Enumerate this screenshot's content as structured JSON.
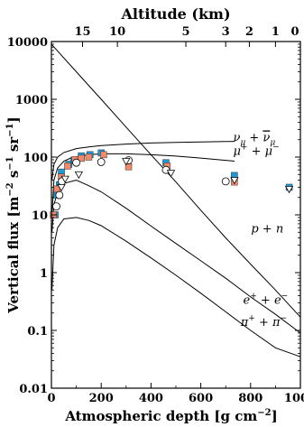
{
  "chart_data": {
    "type": "line",
    "title": "",
    "xlabel_prefix": "Atmospheric depth  [g cm",
    "xlabel_exp": "−2",
    "xlabel_suffix": "]",
    "ylabel_prefix": "Vertical flux  [m",
    "ylabel_exp1": "−2",
    "ylabel_mid1": " s",
    "ylabel_exp2": "−1",
    "ylabel_mid2": " sr",
    "ylabel_exp3": "−1",
    "ylabel_suffix": "]",
    "top_axis_label": "Altitude (km)",
    "xlim": [
      0,
      1000
    ],
    "ylim": [
      0.01,
      10000
    ],
    "y_scale": "log",
    "x_ticks": [
      "0",
      "200",
      "400",
      "600",
      "800",
      "1000"
    ],
    "x_tick_values": [
      0,
      200,
      400,
      600,
      800,
      1000
    ],
    "y_ticks": [
      "0.01",
      "0.1",
      "1",
      "10",
      "100",
      "1000",
      "10000"
    ],
    "y_tick_values": [
      0.01,
      0.1,
      1,
      10,
      100,
      1000,
      10000
    ],
    "altitude_ticks": [
      {
        "label": "15",
        "depth": 125
      },
      {
        "label": "10",
        "depth": 265
      },
      {
        "label": "5",
        "depth": 540
      },
      {
        "label": "3",
        "depth": 700
      },
      {
        "label": "2",
        "depth": 795
      },
      {
        "label": "1",
        "depth": 900
      },
      {
        "label": "0",
        "depth": 1030
      }
    ],
    "series": [
      {
        "name": "p + n",
        "x": [
          0,
          100,
          200,
          300,
          400,
          500,
          600,
          700,
          800,
          900,
          1000
        ],
        "y": [
          9000,
          3000,
          1000,
          330,
          110,
          37,
          12,
          4,
          1.4,
          0.5,
          0.17
        ]
      },
      {
        "name": "ν_μ + ν̄_μ",
        "x": [
          2,
          10,
          25,
          50,
          100,
          150,
          200,
          300,
          400,
          500,
          600,
          700,
          735
        ],
        "y": [
          40,
          75,
          100,
          120,
          140,
          150,
          158,
          168,
          175,
          180,
          183,
          186,
          187
        ]
      },
      {
        "name": "μ⁺ + μ⁻",
        "x": [
          2,
          10,
          25,
          50,
          75,
          100,
          150,
          200,
          300,
          400,
          500,
          600,
          700,
          735
        ],
        "y": [
          10,
          40,
          65,
          85,
          95,
          101,
          110,
          114,
          114,
          110,
          104,
          96,
          88,
          85
        ]
      },
      {
        "name": "e⁺ + e⁻",
        "x": [
          2,
          10,
          25,
          50,
          100,
          150,
          200,
          300,
          400,
          500,
          600,
          700,
          800,
          900,
          1000
        ],
        "y": [
          5,
          15,
          25,
          35,
          40,
          32,
          25,
          13,
          6.4,
          3.2,
          1.6,
          0.8,
          0.38,
          0.19,
          0.09
        ]
      },
      {
        "name": "π⁺ + π⁻",
        "x": [
          2,
          10,
          25,
          50,
          100,
          150,
          200,
          300,
          400,
          500,
          600,
          700,
          800,
          900,
          1000
        ],
        "y": [
          0.5,
          3,
          6,
          8.5,
          9,
          8,
          6.5,
          3.5,
          1.8,
          0.9,
          0.44,
          0.21,
          0.1,
          0.05,
          0.035
        ]
      }
    ],
    "curve_labels": [
      {
        "base": "ν",
        "sub": "μ",
        "mid": " + ",
        "base2": "ν",
        "sub2": "μ",
        "bar": true,
        "x": 730,
        "y": 188
      },
      {
        "base": "μ",
        "sup": "+",
        "mid": " + ",
        "base2": "μ",
        "sup2": "−",
        "x": 730,
        "y": 110
      },
      {
        "text": "p + n",
        "x": 802,
        "y": 5.0
      },
      {
        "base": "e",
        "sup": "+",
        "mid": " + ",
        "base2": "e",
        "sup2": "−",
        "x": 770,
        "y": 0.29
      },
      {
        "base": "π",
        "sup": "+",
        "mid": " + ",
        "base2": "π",
        "sup2": "−",
        "x": 760,
        "y": 0.12
      }
    ],
    "data_points": [
      {
        "marker": "square-blue",
        "points": [
          [
            15,
            10
          ],
          [
            22,
            22
          ],
          [
            32,
            33
          ],
          [
            40,
            55
          ],
          [
            70,
            75
          ],
          [
            90,
            88
          ],
          [
            120,
            105
          ],
          [
            155,
            110
          ],
          [
            200,
            118
          ],
          [
            460,
            80
          ],
          [
            735,
            48
          ],
          [
            955,
            30
          ]
        ]
      },
      {
        "marker": "square-salmon",
        "points": [
          [
            8,
            10
          ],
          [
            22,
            28
          ],
          [
            40,
            45
          ],
          [
            65,
            70
          ],
          [
            95,
            90
          ],
          [
            120,
            95
          ],
          [
            150,
            100
          ],
          [
            210,
            110
          ],
          [
            310,
            68
          ],
          [
            465,
            70
          ],
          [
            735,
            37
          ]
        ]
      },
      {
        "marker": "circle-open",
        "points": [
          [
            20,
            14
          ],
          [
            32,
            22
          ],
          [
            42,
            38
          ],
          [
            100,
            80
          ],
          [
            200,
            82
          ],
          [
            310,
            88
          ],
          [
            460,
            60
          ],
          [
            700,
            38
          ]
        ]
      },
      {
        "marker": "triangle-open",
        "points": [
          [
            40,
            30
          ],
          [
            55,
            42
          ],
          [
            110,
            50
          ],
          [
            300,
            85
          ],
          [
            480,
            53
          ],
          [
            735,
            40
          ],
          [
            955,
            28
          ]
        ]
      }
    ]
  }
}
